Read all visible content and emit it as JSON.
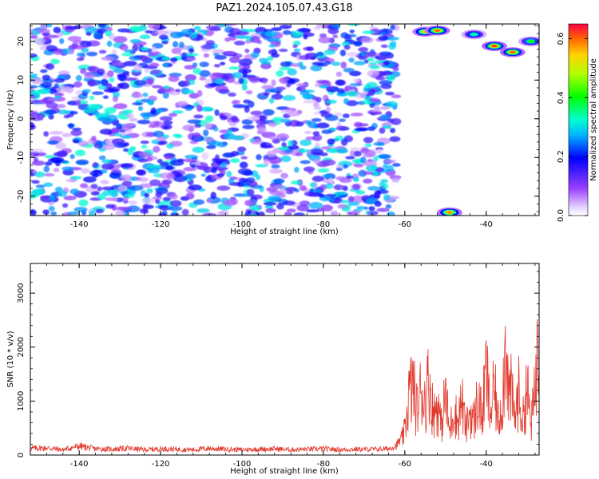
{
  "title": "PAZ1.2024.105.07.43.G18",
  "chart_data": [
    {
      "type": "heatmap",
      "xlabel": "Height of straight line (km)",
      "ylabel": "Frequency (Hz)",
      "xlim": [
        -152,
        -27
      ],
      "ylim": [
        -25,
        24.5
      ],
      "x_ticks": [
        -140,
        -120,
        -100,
        -80,
        -60,
        -40
      ],
      "y_ticks": [
        -20,
        -10,
        0,
        10,
        20
      ],
      "colorbar": {
        "label": "Normalized spectral amplitude",
        "range": [
          0,
          0.65
        ],
        "ticks": [
          0.0,
          0.2,
          0.4,
          0.6
        ],
        "colormap": "rainbow"
      },
      "description_values": {
        "noise_band_x": [
          -152,
          -62
        ],
        "noise_band_level": [
          0.1,
          0.3
        ],
        "signal_peaks": [
          {
            "x": -55,
            "y": 22.5,
            "v": 0.55
          },
          {
            "x": -52,
            "y": 22.8,
            "v": 0.6
          },
          {
            "x": -43,
            "y": 21.8,
            "v": 0.35
          },
          {
            "x": -38,
            "y": 18.8,
            "v": 0.62
          },
          {
            "x": -33.5,
            "y": 17.2,
            "v": 0.6
          },
          {
            "x": -29,
            "y": 20,
            "v": 0.4
          },
          {
            "x": -49,
            "y": -24.2,
            "v": 0.58
          }
        ]
      }
    },
    {
      "type": "line",
      "xlabel": "Height of straight line (km)",
      "ylabel": "SNR (10 * v/v)",
      "xlim": [
        -152,
        -27
      ],
      "ylim": [
        0,
        3550
      ],
      "x_ticks": [
        -140,
        -120,
        -100,
        -80,
        -60,
        -40
      ],
      "y_ticks": [
        0,
        1000,
        2000,
        3000
      ],
      "line_color": "#e23a2e",
      "series": [
        {
          "x": [
            -152,
            -148,
            -144,
            -140,
            -136,
            -132,
            -128,
            -124,
            -120,
            -116,
            -112,
            -108,
            -104,
            -100,
            -96,
            -92,
            -88,
            -84,
            -80,
            -76,
            -72,
            -68,
            -64,
            -62,
            -61,
            -60,
            -59,
            -58,
            -57,
            -56,
            -55,
            -54,
            -53,
            -52,
            -51,
            -50,
            -49,
            -48,
            -47,
            -46,
            -45,
            -44,
            -43,
            -42,
            -41,
            -40,
            -39,
            -38,
            -37,
            -36,
            -35.5,
            -35,
            -34.5,
            -34,
            -33,
            -32,
            -31,
            -30,
            -29,
            -28,
            -27.3
          ],
          "y": [
            150,
            160,
            120,
            200,
            140,
            130,
            150,
            120,
            140,
            130,
            120,
            150,
            130,
            120,
            130,
            140,
            120,
            130,
            140,
            120,
            130,
            130,
            140,
            220,
            360,
            650,
            1650,
            1900,
            1200,
            1800,
            1500,
            2100,
            1100,
            1400,
            800,
            1700,
            600,
            1300,
            900,
            1500,
            700,
            1200,
            900,
            1600,
            1000,
            2300,
            1100,
            1800,
            900,
            1600,
            2500,
            3550,
            1500,
            1800,
            1000,
            1700,
            900,
            1900,
            800,
            1700,
            3300
          ]
        }
      ]
    }
  ]
}
